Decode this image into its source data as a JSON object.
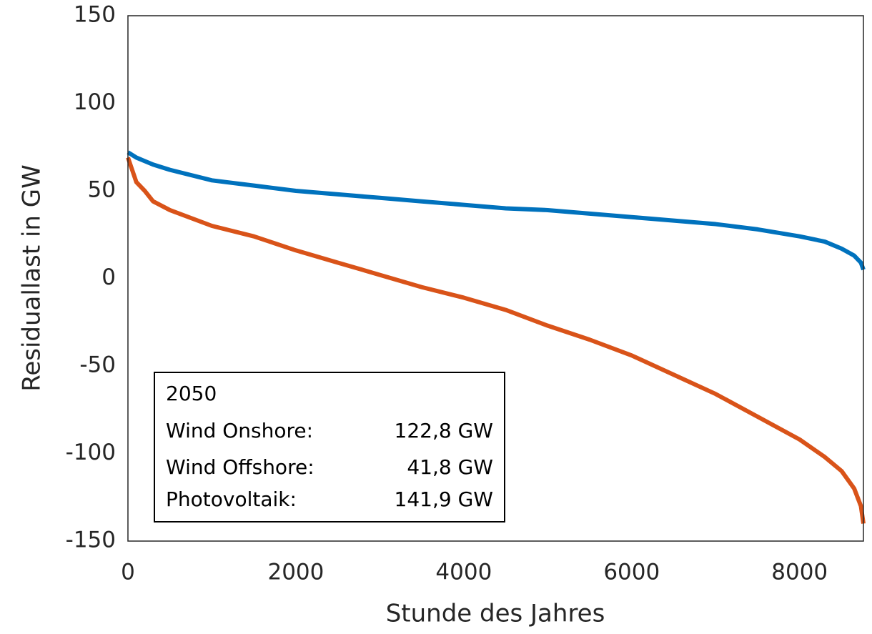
{
  "chart_data": {
    "type": "line",
    "xlabel": "Stunde des Jahres",
    "ylabel": "Residuallast in GW",
    "x": [
      0,
      100,
      200,
      300,
      500,
      1000,
      1500,
      2000,
      2500,
      3000,
      3500,
      4000,
      4500,
      5000,
      5500,
      6000,
      6500,
      7000,
      7500,
      8000,
      8300,
      8500,
      8650,
      8730,
      8760
    ],
    "series": [
      {
        "color": "#0072bd",
        "values": [
          72,
          69,
          67,
          65,
          62,
          56,
          53,
          50,
          48,
          46,
          44,
          42,
          40,
          39,
          37,
          35,
          33,
          31,
          28,
          24,
          21,
          17,
          13,
          9,
          5
        ]
      },
      {
        "color": "#d95319",
        "values": [
          69,
          55,
          50,
          44,
          39,
          30,
          24,
          16,
          9,
          2,
          -5,
          -11,
          -18,
          -27,
          -35,
          -44,
          -55,
          -66,
          -79,
          -92,
          -102,
          -110,
          -120,
          -130,
          -140
        ]
      }
    ],
    "xlim": [
      0,
      8760
    ],
    "ylim": [
      -150,
      150
    ],
    "xticks": [
      0,
      2000,
      4000,
      6000,
      8000
    ],
    "yticks": [
      -150,
      -100,
      -50,
      0,
      50,
      100,
      150
    ],
    "grid": true,
    "annotation": {
      "title": "2050",
      "rows": [
        [
          "Wind Onshore:",
          "122,8 GW"
        ],
        [
          "Wind Offshore:",
          "41,8 GW"
        ],
        [
          "Photovoltaik:",
          "141,9 GW"
        ]
      ]
    }
  }
}
